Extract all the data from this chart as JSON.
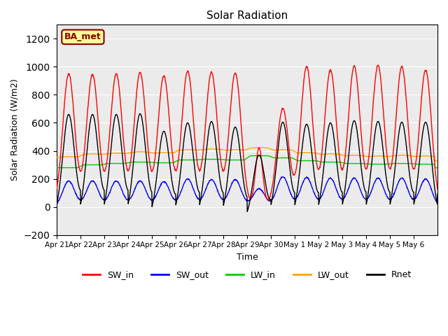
{
  "title": "Solar Radiation",
  "xlabel": "Time",
  "ylabel": "Solar Radiation (W/m2)",
  "ylim": [
    -200,
    1300
  ],
  "yticks": [
    -200,
    0,
    200,
    400,
    600,
    800,
    1000,
    1200
  ],
  "date_labels": [
    "Apr 21",
    "Apr 22",
    "Apr 23",
    "Apr 24",
    "Apr 25",
    "Apr 26",
    "Apr 27",
    "Apr 28",
    "Apr 29",
    "Apr 30",
    "May 1",
    "May 2",
    "May 3",
    "May 4",
    "May 5",
    "May 6"
  ],
  "series_colors": {
    "SW_in": "#ff0000",
    "SW_out": "#0000ff",
    "LW_in": "#00cc00",
    "LW_out": "#ffa500",
    "Rnet": "#000000"
  },
  "annotation_text": "BA_met",
  "annotation_color": "#8B0000",
  "annotation_bg": "#ffff99",
  "plot_bg": "#ebebeb",
  "n_days": 16,
  "points_per_day": 96,
  "SW_in_peaks": [
    950,
    945,
    950,
    960,
    935,
    970,
    960,
    955,
    420,
    700,
    1000,
    975,
    1005,
    1010,
    1000,
    975
  ],
  "SW_out_peaks": [
    185,
    185,
    185,
    185,
    180,
    200,
    195,
    195,
    130,
    215,
    210,
    205,
    205,
    205,
    205,
    200
  ],
  "LW_in_base": [
    280,
    300,
    310,
    320,
    315,
    335,
    340,
    335,
    365,
    350,
    330,
    320,
    310,
    305,
    310,
    305
  ],
  "LW_out_base": [
    350,
    370,
    375,
    385,
    380,
    400,
    405,
    400,
    415,
    400,
    380,
    370,
    360,
    355,
    360,
    355
  ],
  "Rnet_peaks": [
    660,
    660,
    660,
    665,
    540,
    600,
    610,
    570,
    370,
    605,
    590,
    600,
    615,
    610,
    605,
    605
  ],
  "Rnet_night": [
    -80,
    -80,
    -80,
    -80,
    -85,
    -80,
    -80,
    -80,
    -100,
    -80,
    -80,
    -80,
    -80,
    -80,
    -80,
    -80
  ]
}
